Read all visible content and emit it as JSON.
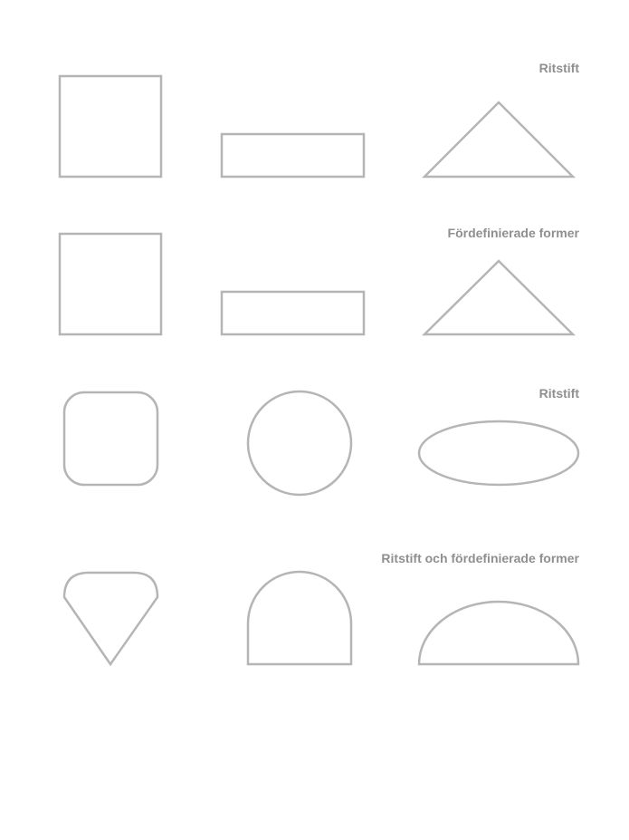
{
  "colors": {
    "label": "#8f8f8f",
    "stroke": "#b5b5b5",
    "background": "#ffffff"
  },
  "rows": [
    {
      "label": "Ritstift",
      "shapes": [
        "square",
        "rectangle",
        "triangle"
      ]
    },
    {
      "label": "Fördefinierade former",
      "shapes": [
        "square",
        "rectangle",
        "triangle"
      ]
    },
    {
      "label": "Ritstift",
      "shapes": [
        "rounded-square",
        "circle",
        "ellipse"
      ]
    },
    {
      "label": "Ritstift och fördefinierade former",
      "shapes": [
        "diamond-gem",
        "arch",
        "half-ellipse"
      ]
    }
  ]
}
